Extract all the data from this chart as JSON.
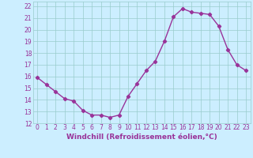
{
  "x": [
    0,
    1,
    2,
    3,
    4,
    5,
    6,
    7,
    8,
    9,
    10,
    11,
    12,
    13,
    14,
    15,
    16,
    17,
    18,
    19,
    20,
    21,
    22,
    23
  ],
  "y": [
    15.9,
    15.3,
    14.7,
    14.1,
    13.9,
    13.1,
    12.7,
    12.7,
    12.5,
    12.7,
    14.3,
    15.4,
    16.5,
    17.3,
    19.0,
    21.1,
    21.8,
    21.5,
    21.4,
    21.3,
    20.3,
    18.3,
    17.0,
    16.5
  ],
  "line_color": "#993399",
  "marker": "D",
  "marker_size": 2.2,
  "bg_color": "#cceeff",
  "grid_color": "#99cccc",
  "xlabel": "Windchill (Refroidissement éolien,°C)",
  "xlabel_color": "#993399",
  "xlim": [
    -0.5,
    23.5
  ],
  "ylim": [
    12,
    22.4
  ],
  "yticks": [
    12,
    13,
    14,
    15,
    16,
    17,
    18,
    19,
    20,
    21,
    22
  ],
  "xticks": [
    0,
    1,
    2,
    3,
    4,
    5,
    6,
    7,
    8,
    9,
    10,
    11,
    12,
    13,
    14,
    15,
    16,
    17,
    18,
    19,
    20,
    21,
    22,
    23
  ],
  "tick_label_color": "#993399",
  "tick_label_size": 5.5,
  "xlabel_size": 6.5,
  "line_width": 1.0
}
